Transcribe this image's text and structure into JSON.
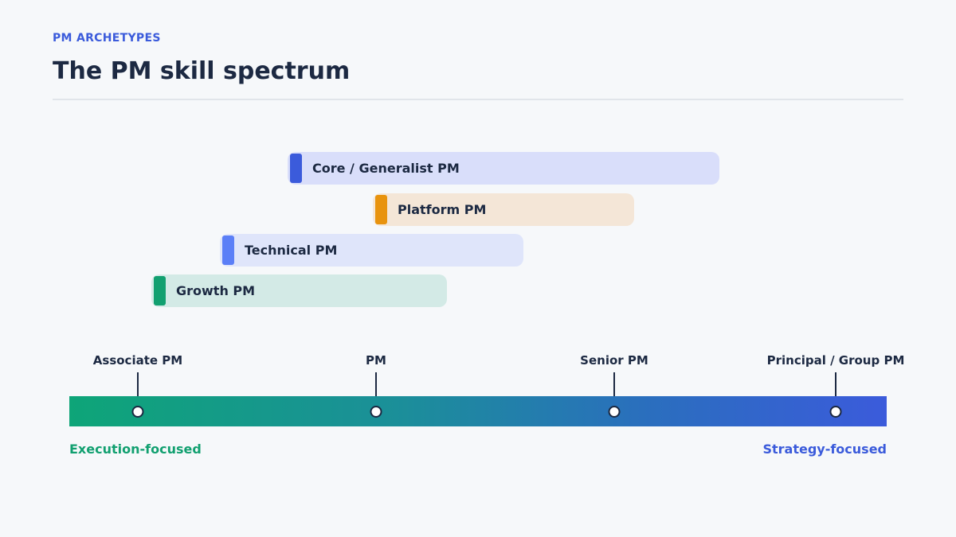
{
  "header": {
    "eyebrow": "PM ARCHETYPES",
    "title": "The PM skill spectrum"
  },
  "archetypes": [
    {
      "label": "Core / Generalist PM",
      "accent_color": "#3b5bdb"
    },
    {
      "label": "Platform PM",
      "accent_color": "#e8930e"
    },
    {
      "label": "Technical PM",
      "accent_color": "#5b7ff7"
    },
    {
      "label": "Growth PM",
      "accent_color": "#12a070"
    }
  ],
  "spectrum": {
    "milestones": [
      "Associate PM",
      "PM",
      "Senior PM",
      "Principal / Group PM"
    ],
    "left_end": "Execution-focused",
    "right_end": "Strategy-focused",
    "gradient_start": "#0ea578",
    "gradient_end": "#3b5bdb"
  }
}
